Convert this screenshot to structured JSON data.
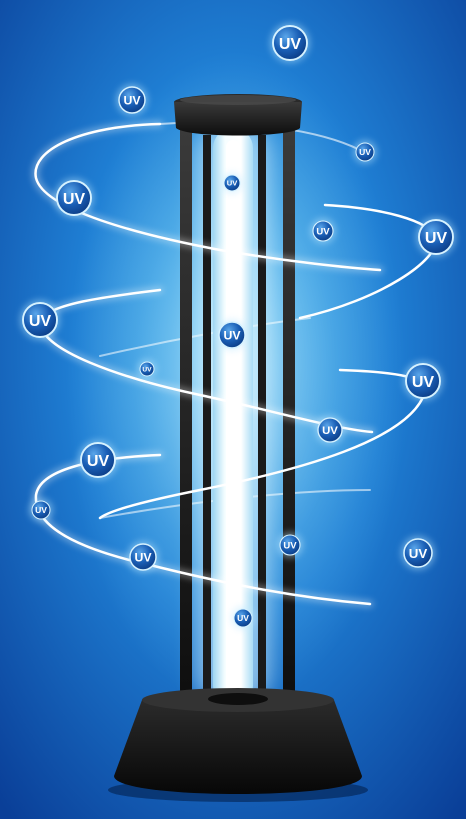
{
  "image": {
    "subject": "UV sterilizer lamp",
    "colors": {
      "background_light": "#4fb4ee",
      "background_dark": "#0a3f98",
      "lamp_body": "#161616",
      "tube_glow": "#e8fbff",
      "swirl": "#ffffff",
      "bubble": "#1558b0"
    }
  },
  "bubbles": [
    {
      "label": "UV"
    },
    {
      "label": "UV"
    },
    {
      "label": "UV"
    },
    {
      "label": "UV"
    },
    {
      "label": "UV"
    },
    {
      "label": "UV"
    },
    {
      "label": "UV"
    },
    {
      "label": "UV"
    },
    {
      "label": "UV"
    },
    {
      "label": "UV"
    },
    {
      "label": "UV"
    },
    {
      "label": "UV"
    },
    {
      "label": "UV"
    },
    {
      "label": "UV"
    },
    {
      "label": "UV"
    },
    {
      "label": "UV"
    },
    {
      "label": "UV"
    },
    {
      "label": "UV"
    },
    {
      "label": "UV"
    },
    {
      "label": "UV"
    }
  ]
}
